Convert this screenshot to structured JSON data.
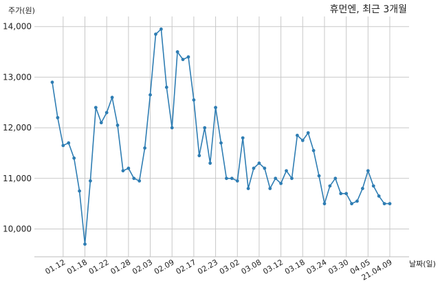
{
  "chart_data": {
    "type": "line",
    "title": "휴먼엔, 최근 3개월",
    "xlabel": "날짜(일)",
    "ylabel": "주가(원)",
    "ylim": [
      9450,
      14200
    ],
    "yticks": [
      10000,
      11000,
      12000,
      13000,
      14000
    ],
    "ytick_labels": [
      "10,000",
      "11,000",
      "12,000",
      "13,000",
      "14,000"
    ],
    "xtick_labels": [
      "01.12",
      "01.18",
      "01.22",
      "01.28",
      "02.03",
      "02.09",
      "02.17",
      "02.23",
      "03.02",
      "03.08",
      "03.12",
      "03.18",
      "03.24",
      "03.30",
      "04.05",
      "21.04.09"
    ],
    "xtick_index": [
      2,
      6,
      10,
      14,
      18,
      22,
      26,
      30,
      34,
      38,
      42,
      46,
      50,
      54,
      58,
      62
    ],
    "grid": true,
    "colors": {
      "line": "#2e7db3",
      "grid": "#c8c8c8"
    },
    "series": [
      {
        "values": [
          12900,
          12200,
          11650,
          11700,
          11400,
          10750,
          9700,
          10950,
          12400,
          12100,
          12300,
          12600,
          12050,
          11150,
          11200,
          11000,
          10950,
          11600,
          12650,
          13850,
          13950,
          12800,
          12000,
          13500,
          13350,
          13400,
          12550,
          11450,
          12000,
          11300,
          12400,
          11700,
          11000,
          11000,
          10950,
          11800,
          10800,
          11200,
          11300,
          11200,
          10800,
          11000,
          10900,
          11150,
          11000,
          11850,
          11750,
          11900,
          11550,
          11050,
          10500,
          10850,
          11000,
          10700,
          10700,
          10500,
          10550,
          10800,
          11150,
          10850,
          10650,
          10500,
          10500
        ]
      }
    ]
  }
}
